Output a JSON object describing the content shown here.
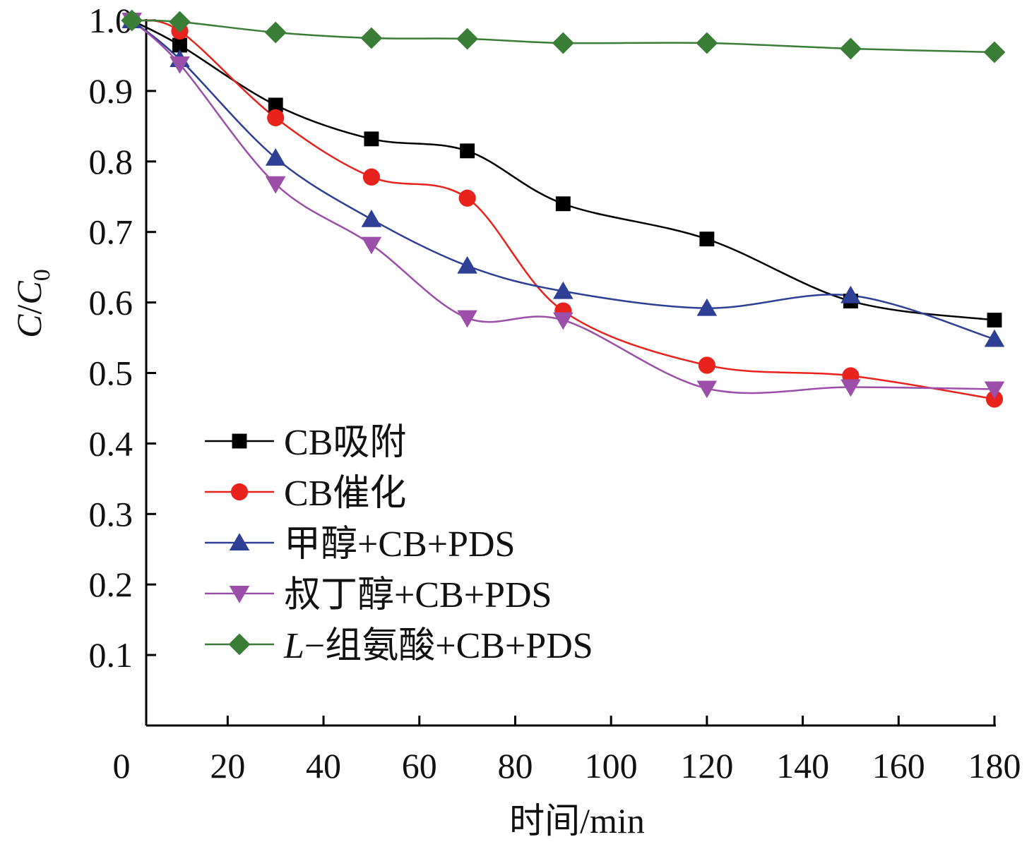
{
  "chart_data": {
    "type": "line",
    "xlabel": "时间/min",
    "ylabel": {
      "italic1": "C",
      "slash": "/",
      "italic2": "C",
      "sub": "0"
    },
    "xlim": [
      0,
      180
    ],
    "ylim": [
      0,
      1.0
    ],
    "xticks": [
      0,
      20,
      40,
      60,
      80,
      100,
      120,
      140,
      160,
      180
    ],
    "xtick_labels": [
      "0",
      "20",
      "40",
      "60",
      "80",
      "100",
      "120",
      "140",
      "160",
      "180"
    ],
    "yticks": [
      0.1,
      0.2,
      0.3,
      0.4,
      0.5,
      0.6,
      0.7,
      0.8,
      0.9,
      1.0
    ],
    "ytick_labels": [
      "0.1",
      "0.2",
      "0.3",
      "0.4",
      "0.5",
      "0.6",
      "0.7",
      "0.8",
      "0.9",
      "1.0"
    ],
    "grid": false,
    "legend_position": "lower-left",
    "series": [
      {
        "name": "CB吸附",
        "color": "#000000",
        "marker": "square",
        "x": [
          0,
          10,
          30,
          50,
          70,
          90,
          120,
          150,
          180
        ],
        "y": [
          1.0,
          0.965,
          0.88,
          0.832,
          0.815,
          0.74,
          0.69,
          0.602,
          0.575
        ]
      },
      {
        "name": "CB催化",
        "color": "#e8231d",
        "marker": "circle",
        "x": [
          0,
          10,
          30,
          50,
          70,
          90,
          120,
          150,
          180
        ],
        "y": [
          1.0,
          0.985,
          0.862,
          0.778,
          0.748,
          0.588,
          0.511,
          0.496,
          0.463
        ]
      },
      {
        "name": "甲醇+CB+PDS",
        "color": "#2e3f95",
        "marker": "triangle-up",
        "x": [
          0,
          10,
          30,
          50,
          70,
          90,
          120,
          150,
          180
        ],
        "y": [
          1.0,
          0.945,
          0.805,
          0.718,
          0.652,
          0.616,
          0.592,
          0.61,
          0.548
        ]
      },
      {
        "name": "叔丁醇+CB+PDS",
        "color": "#9b4fa8",
        "marker": "triangle-down",
        "x": [
          0,
          10,
          30,
          50,
          70,
          90,
          120,
          150,
          180
        ],
        "y": [
          1.0,
          0.938,
          0.768,
          0.682,
          0.578,
          0.575,
          0.478,
          0.48,
          0.477
        ]
      },
      {
        "name": "L−组氨酸+CB+PDS",
        "name_italic_prefix": "L",
        "name_rest": "−组氨酸+CB+PDS",
        "color": "#3a7d36",
        "marker": "diamond",
        "x": [
          0,
          10,
          30,
          50,
          70,
          90,
          120,
          150,
          180
        ],
        "y": [
          1.0,
          0.998,
          0.983,
          0.975,
          0.974,
          0.968,
          0.968,
          0.96,
          0.955
        ]
      }
    ]
  }
}
